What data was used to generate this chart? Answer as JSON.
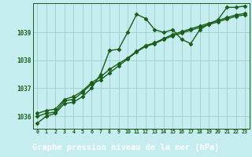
{
  "title": "Graphe pression niveau de la mer (hPa)",
  "bg_color": "#c5edf0",
  "plot_bg_color": "#c5edf0",
  "banner_color": "#2d6e2d",
  "line_color": "#1a5c1a",
  "grid_color": "#9ecece",
  "x_ticks": [
    0,
    1,
    2,
    3,
    4,
    5,
    6,
    7,
    8,
    9,
    10,
    11,
    12,
    13,
    14,
    15,
    16,
    17,
    18,
    19,
    20,
    21,
    22,
    23
  ],
  "ylim": [
    1035.55,
    1040.05
  ],
  "yticks": [
    1036,
    1037,
    1038,
    1039
  ],
  "series1": [
    1035.75,
    1036.0,
    1036.1,
    1036.45,
    1036.5,
    1036.7,
    1037.0,
    1037.5,
    1038.35,
    1038.4,
    1039.0,
    1039.65,
    1039.5,
    1039.1,
    1039.0,
    1039.1,
    1038.75,
    1038.6,
    1039.1,
    1039.3,
    1039.45,
    1039.9,
    1039.9,
    1039.95
  ],
  "series2": [
    1036.0,
    1036.1,
    1036.15,
    1036.55,
    1036.6,
    1036.85,
    1037.15,
    1037.3,
    1037.55,
    1037.8,
    1038.05,
    1038.3,
    1038.5,
    1038.6,
    1038.75,
    1038.88,
    1038.98,
    1039.08,
    1039.18,
    1039.28,
    1039.38,
    1039.48,
    1039.58,
    1039.63
  ],
  "series3": [
    1036.1,
    1036.2,
    1036.25,
    1036.6,
    1036.7,
    1036.9,
    1037.2,
    1037.4,
    1037.68,
    1037.88,
    1038.08,
    1038.33,
    1038.53,
    1038.63,
    1038.78,
    1038.93,
    1039.03,
    1039.13,
    1039.23,
    1039.33,
    1039.43,
    1039.53,
    1039.63,
    1039.68
  ]
}
